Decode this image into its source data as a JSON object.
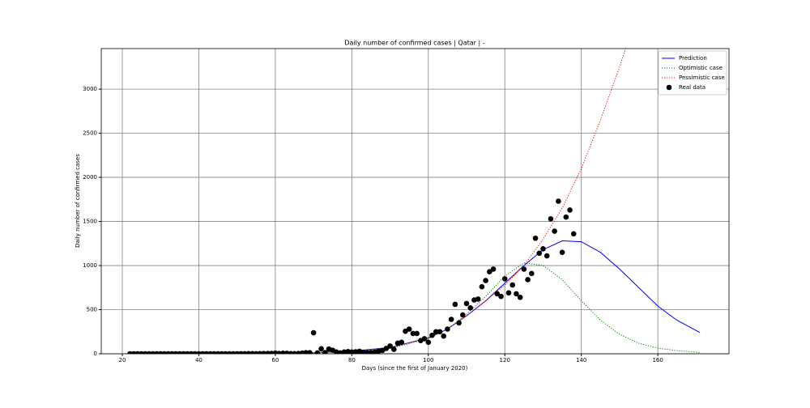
{
  "chart_data": {
    "type": "line",
    "title": "Daily number of confirmed cases | Qatar | -",
    "x_label": "Days (since the first of January 2020)",
    "y_label": "Daily number of confirmed cases",
    "xlim": [
      14.5,
      178.6
    ],
    "ylim": [
      0,
      3460
    ],
    "xticks": [
      20,
      40,
      60,
      80,
      100,
      120,
      140,
      160
    ],
    "yticks": [
      0,
      500,
      1000,
      1500,
      2000,
      2500,
      3000
    ],
    "grid": true,
    "legend": "upper right",
    "series": [
      {
        "name": "Prediction",
        "color": "#0000ff",
        "style": "solid",
        "x": [
          22,
          30,
          40,
          50,
          60,
          70,
          80,
          90,
          100,
          105,
          110,
          115,
          120,
          125,
          130,
          135,
          140,
          145,
          150,
          155,
          160,
          165,
          171
        ],
        "values": [
          0,
          0,
          0,
          1,
          4,
          12,
          30,
          70,
          180,
          280,
          430,
          600,
          800,
          1000,
          1180,
          1280,
          1270,
          1150,
          960,
          750,
          540,
          380,
          240
        ]
      },
      {
        "name": "Optimistic case",
        "color": "#008000",
        "style": "dotted",
        "x": [
          22,
          30,
          40,
          50,
          60,
          70,
          80,
          90,
          100,
          105,
          110,
          115,
          120,
          125,
          130,
          135,
          140,
          145,
          150,
          155,
          160,
          165,
          171
        ],
        "values": [
          0,
          0,
          0,
          1,
          3,
          10,
          25,
          60,
          170,
          280,
          450,
          650,
          880,
          1030,
          1000,
          840,
          600,
          380,
          220,
          120,
          65,
          35,
          15
        ]
      },
      {
        "name": "Pessimistic case",
        "color": "#ff0000",
        "style": "dotted",
        "x": [
          22,
          30,
          40,
          50,
          60,
          70,
          80,
          90,
          100,
          105,
          110,
          115,
          120,
          125,
          130,
          135,
          140,
          145,
          150,
          152
        ],
        "values": [
          0,
          0,
          0,
          1,
          4,
          12,
          30,
          70,
          180,
          280,
          430,
          600,
          780,
          1000,
          1300,
          1650,
          2100,
          2650,
          3250,
          3520
        ]
      },
      {
        "name": "Real data",
        "color": "#000000",
        "style": "points",
        "x": [
          22,
          23,
          24,
          25,
          26,
          27,
          28,
          29,
          30,
          31,
          32,
          33,
          34,
          35,
          36,
          37,
          38,
          39,
          40,
          41,
          42,
          43,
          44,
          45,
          46,
          47,
          48,
          49,
          50,
          51,
          52,
          53,
          54,
          55,
          56,
          57,
          58,
          59,
          60,
          61,
          62,
          63,
          64,
          65,
          66,
          67,
          68,
          69,
          70,
          71,
          72,
          73,
          74,
          75,
          76,
          77,
          78,
          79,
          80,
          81,
          82,
          83,
          84,
          85,
          86,
          87,
          88,
          89,
          90,
          91,
          92,
          93,
          94,
          95,
          96,
          97,
          98,
          99,
          100,
          101,
          102,
          103,
          104,
          105,
          106,
          107,
          108,
          109,
          110,
          111,
          112,
          113,
          114,
          115,
          116,
          117,
          118,
          119,
          120,
          121,
          122,
          123,
          124,
          125,
          126,
          127,
          128,
          129,
          130,
          131,
          132,
          133,
          134,
          135,
          136,
          137,
          138
        ],
        "values": [
          0,
          0,
          0,
          0,
          0,
          0,
          0,
          0,
          0,
          0,
          0,
          0,
          0,
          0,
          0,
          0,
          0,
          0,
          0,
          0,
          0,
          0,
          0,
          0,
          0,
          0,
          0,
          0,
          0,
          1,
          1,
          2,
          2,
          1,
          2,
          3,
          3,
          4,
          7,
          3,
          6,
          5,
          2,
          2,
          3,
          7,
          12,
          12,
          238,
          10,
          57,
          13,
          54,
          40,
          20,
          10,
          20,
          25,
          20,
          22,
          28,
          16,
          12,
          14,
          18,
          30,
          38,
          60,
          88,
          50,
          120,
          130,
          255,
          280,
          230,
          230,
          150,
          170,
          130,
          210,
          250,
          250,
          200,
          280,
          390,
          560,
          350,
          440,
          570,
          520,
          610,
          620,
          760,
          830,
          930,
          960,
          680,
          650,
          850,
          690,
          780,
          680,
          640,
          960,
          840,
          910,
          1310,
          1140,
          1190,
          1110,
          1530,
          1390,
          1730,
          1150,
          1550,
          1630,
          1360
        ]
      }
    ]
  }
}
